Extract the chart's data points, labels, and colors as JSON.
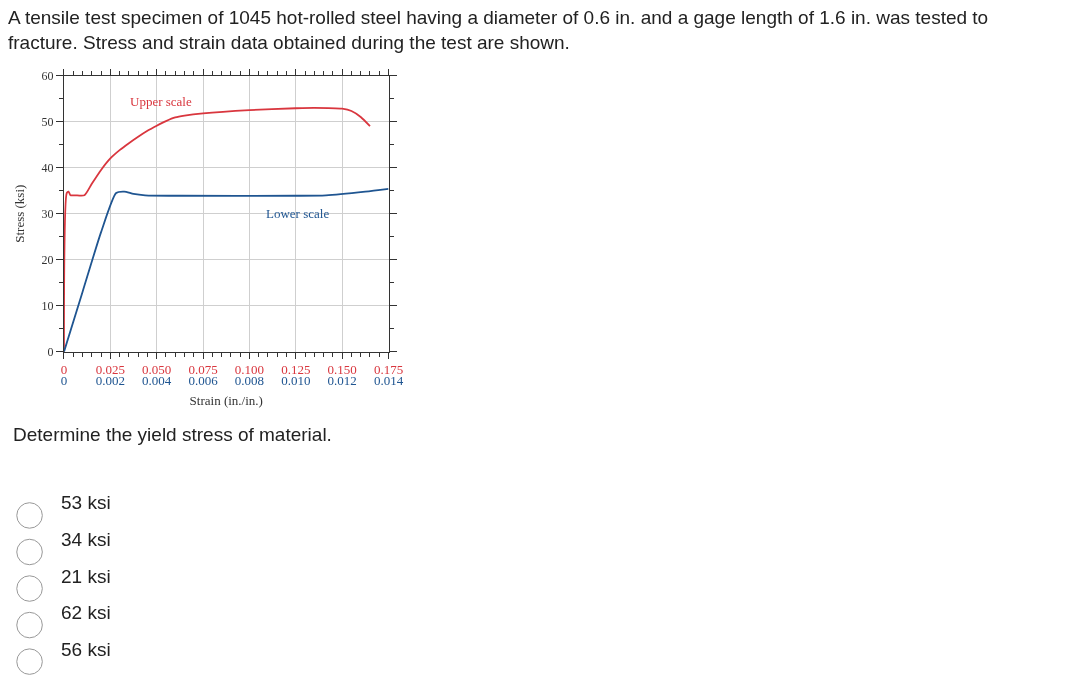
{
  "chart_data": {
    "type": "line",
    "title": "A tensile test specimen of 1045 hot-rolled steel having a diameter of 0.6 in. and a gage length of 1.6 in. was tested to fracture. Stress and strain data obtained during the test are shown.",
    "xlabel": "Strain (in./in.)",
    "ylabel": "Stress (ksi)",
    "series": [
      {
        "name": "Upper scale",
        "color": "#d9363e",
        "x": [
          0,
          0.0015,
          0.0025,
          0.0035,
          0.006,
          0.011,
          0.015,
          0.02,
          0.025,
          0.03,
          0.035,
          0.04,
          0.045,
          0.05,
          0.055,
          0.06,
          0.065,
          0.075,
          0.1,
          0.125,
          0.135,
          0.15,
          0.155,
          0.16,
          0.165
        ],
        "values": [
          0,
          34.5,
          34.8,
          34,
          34,
          34,
          36.5,
          39.5,
          42,
          43.8,
          45.3,
          46.7,
          48,
          49.1,
          50.1,
          50.9,
          51.3,
          51.8,
          52.5,
          52.9,
          53,
          52.8,
          52.3,
          51,
          49
        ]
      },
      {
        "name": "Lower scale",
        "color": "#1f5591",
        "axis": "x2",
        "x": [
          0,
          0.0008,
          0.0016,
          0.00225,
          0.0026,
          0.003,
          0.0035,
          0.005,
          0.01,
          0.0113,
          0.013,
          0.014
        ],
        "values": [
          0,
          13,
          26,
          34.5,
          34.8,
          34.3,
          34,
          33.9,
          33.9,
          34,
          34.8,
          35.4
        ]
      }
    ],
    "xlim": [
      0,
      0.175
    ],
    "xticks": [
      0,
      {
        "value": 0.005,
        "label": null
      },
      {
        "value": 0.01,
        "label": null
      },
      {
        "value": 0.015,
        "label": null
      },
      {
        "value": 0.02,
        "label": null
      },
      0.025,
      {
        "value": 0.03,
        "label": null
      },
      {
        "value": 0.035,
        "label": null
      },
      {
        "value": 0.04,
        "label": null
      },
      {
        "value": 0.045,
        "label": null
      },
      {
        "value": 0.05,
        "label": "0.050"
      },
      {
        "value": 0.055,
        "label": null
      },
      {
        "value": 0.06,
        "label": null
      },
      {
        "value": 0.065,
        "label": null
      },
      {
        "value": 0.07,
        "label": null
      },
      0.075,
      {
        "value": 0.08,
        "label": null
      },
      {
        "value": 0.085,
        "label": null
      },
      {
        "value": 0.09,
        "label": null
      },
      {
        "value": 0.095,
        "label": null
      },
      {
        "value": 0.1,
        "label": "0.100"
      },
      {
        "value": 0.105,
        "label": null
      },
      {
        "value": 0.11,
        "label": null
      },
      {
        "value": 0.115,
        "label": null
      },
      {
        "value": 0.12,
        "label": null
      },
      0.125,
      {
        "value": 0.13,
        "label": null
      },
      {
        "value": 0.135,
        "label": null
      },
      {
        "value": 0.14,
        "label": null
      },
      {
        "value": 0.145,
        "label": null
      },
      {
        "value": 0.15,
        "label": "0.150"
      },
      {
        "value": 0.155,
        "label": null
      },
      {
        "value": 0.16,
        "label": null
      },
      {
        "value": 0.165,
        "label": null
      },
      {
        "value": 0.17,
        "label": null
      },
      0.175
    ],
    "x2lim": [
      0,
      0.014
    ],
    "x2ticks": [
      0,
      0.002,
      0.004,
      0.006,
      0.008,
      {
        "value": 0.01,
        "label": "0.010"
      },
      0.012,
      0.014
    ],
    "ylim": [
      0,
      60
    ],
    "yticks": [
      0,
      {
        "value": 5,
        "label": null
      },
      10,
      {
        "value": 15,
        "label": null
      },
      20,
      {
        "value": 25,
        "label": null
      },
      30,
      {
        "value": 35,
        "label": null
      },
      40,
      {
        "value": 45,
        "label": null
      },
      50,
      {
        "value": 55,
        "label": null
      },
      60
    ],
    "grid": true,
    "legend": false,
    "line_style": "solid",
    "marker": "none",
    "annotations": [
      "Determine the yield stress of material.",
      "53 ksi",
      "34 ksi",
      "21 ksi",
      "62 ksi",
      "56 ksi"
    ]
  }
}
